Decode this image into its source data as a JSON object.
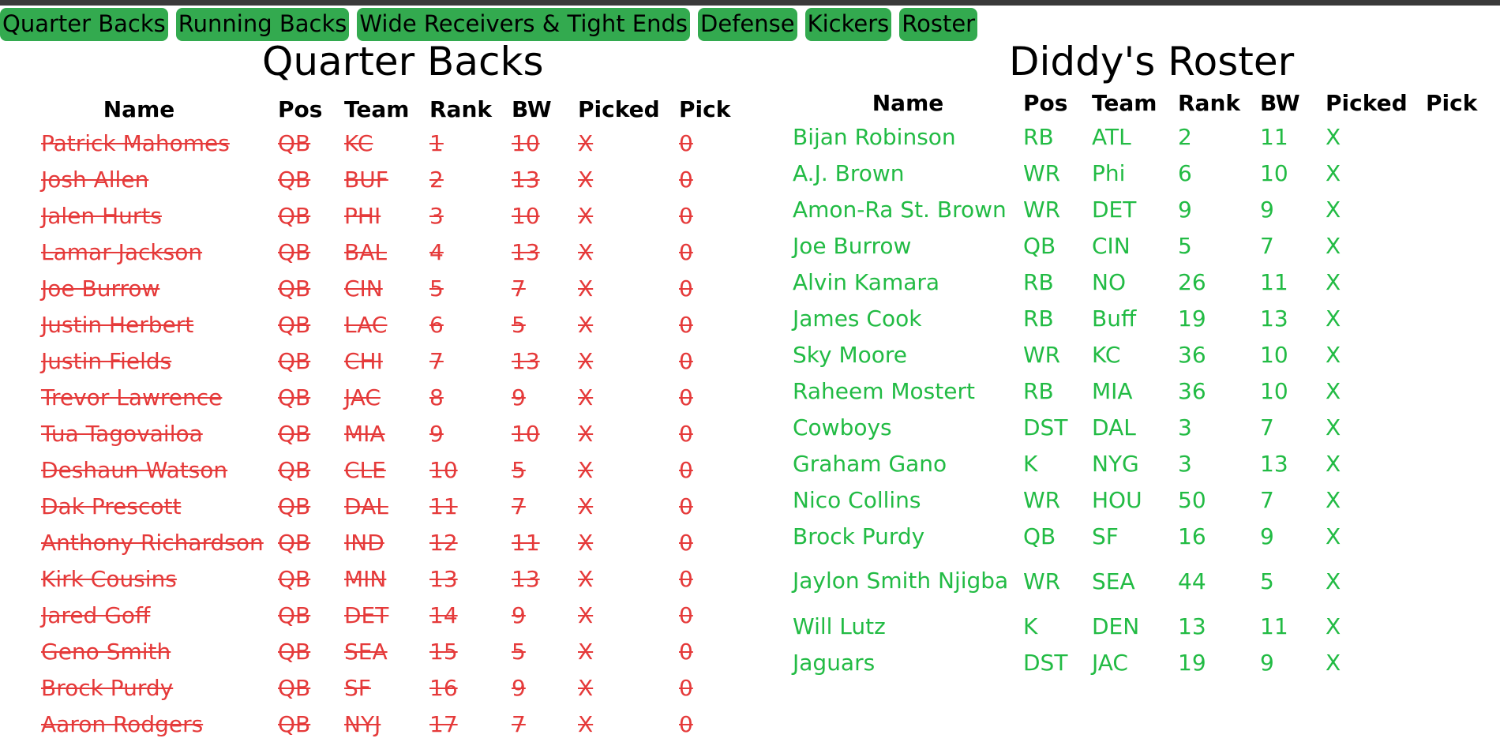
{
  "nav": {
    "tabs": [
      {
        "label": "Quarter Backs"
      },
      {
        "label": "Running Backs"
      },
      {
        "label": "Wide Receivers & Tight Ends"
      },
      {
        "label": "Defense"
      },
      {
        "label": "Kickers"
      },
      {
        "label": "Roster"
      }
    ]
  },
  "qb_section": {
    "title": "Quarter Backs",
    "headers": {
      "name": "Name",
      "pos": "Pos",
      "team": "Team",
      "rank": "Rank",
      "bw": "BW",
      "picked": "Picked",
      "pick": "Pick"
    },
    "rows": [
      {
        "name": "Patrick Mahomes",
        "pos": "QB",
        "team": "KC",
        "rank": "1",
        "bw": "10",
        "picked": "X",
        "pick": "0"
      },
      {
        "name": "Josh Allen",
        "pos": "QB",
        "team": "BUF",
        "rank": "2",
        "bw": "13",
        "picked": "X",
        "pick": "0"
      },
      {
        "name": "Jalen Hurts",
        "pos": "QB",
        "team": "PHI",
        "rank": "3",
        "bw": "10",
        "picked": "X",
        "pick": "0"
      },
      {
        "name": "Lamar Jackson",
        "pos": "QB",
        "team": "BAL",
        "rank": "4",
        "bw": "13",
        "picked": "X",
        "pick": "0"
      },
      {
        "name": "Joe Burrow",
        "pos": "QB",
        "team": "CIN",
        "rank": "5",
        "bw": "7",
        "picked": "X",
        "pick": "0"
      },
      {
        "name": "Justin Herbert",
        "pos": "QB",
        "team": "LAC",
        "rank": "6",
        "bw": "5",
        "picked": "X",
        "pick": "0"
      },
      {
        "name": "Justin Fields",
        "pos": "QB",
        "team": "CHI",
        "rank": "7",
        "bw": "13",
        "picked": "X",
        "pick": "0"
      },
      {
        "name": "Trevor Lawrence",
        "pos": "QB",
        "team": "JAC",
        "rank": "8",
        "bw": "9",
        "picked": "X",
        "pick": "0"
      },
      {
        "name": "Tua Tagovailoa",
        "pos": "QB",
        "team": "MIA",
        "rank": "9",
        "bw": "10",
        "picked": "X",
        "pick": "0"
      },
      {
        "name": "Deshaun Watson",
        "pos": "QB",
        "team": "CLE",
        "rank": "10",
        "bw": "5",
        "picked": "X",
        "pick": "0"
      },
      {
        "name": "Dak Prescott",
        "pos": "QB",
        "team": "DAL",
        "rank": "11",
        "bw": "7",
        "picked": "X",
        "pick": "0"
      },
      {
        "name": "Anthony Richardson",
        "pos": "QB",
        "team": "IND",
        "rank": "12",
        "bw": "11",
        "picked": "X",
        "pick": "0"
      },
      {
        "name": "Kirk Cousins",
        "pos": "QB",
        "team": "MIN",
        "rank": "13",
        "bw": "13",
        "picked": "X",
        "pick": "0"
      },
      {
        "name": "Jared Goff",
        "pos": "QB",
        "team": "DET",
        "rank": "14",
        "bw": "9",
        "picked": "X",
        "pick": "0"
      },
      {
        "name": "Geno Smith",
        "pos": "QB",
        "team": "SEA",
        "rank": "15",
        "bw": "5",
        "picked": "X",
        "pick": "0"
      },
      {
        "name": "Brock Purdy",
        "pos": "QB",
        "team": "SF",
        "rank": "16",
        "bw": "9",
        "picked": "X",
        "pick": "0"
      },
      {
        "name": "Aaron Rodgers",
        "pos": "QB",
        "team": "NYJ",
        "rank": "17",
        "bw": "7",
        "picked": "X",
        "pick": "0"
      }
    ]
  },
  "roster_section": {
    "title": "Diddy's Roster",
    "headers": {
      "name": "Name",
      "pos": "Pos",
      "team": "Team",
      "rank": "Rank",
      "bw": "BW",
      "picked": "Picked",
      "pick": "Pick"
    },
    "rows": [
      {
        "name": "Bijan Robinson",
        "pos": "RB",
        "team": "ATL",
        "rank": "2",
        "bw": "11",
        "picked": "X"
      },
      {
        "name": "A.J. Brown",
        "pos": "WR",
        "team": "Phi",
        "rank": "6",
        "bw": "10",
        "picked": "X"
      },
      {
        "name": "Amon-Ra St. Brown",
        "pos": "WR",
        "team": "DET",
        "rank": "9",
        "bw": "9",
        "picked": "X"
      },
      {
        "name": "Joe Burrow",
        "pos": "QB",
        "team": "CIN",
        "rank": "5",
        "bw": "7",
        "picked": "X"
      },
      {
        "name": "Alvin Kamara",
        "pos": "RB",
        "team": "NO",
        "rank": "26",
        "bw": "11",
        "picked": "X"
      },
      {
        "name": "James Cook",
        "pos": "RB",
        "team": "Buff",
        "rank": "19",
        "bw": "13",
        "picked": "X"
      },
      {
        "name": "Sky Moore",
        "pos": "WR",
        "team": "KC",
        "rank": "36",
        "bw": "10",
        "picked": "X"
      },
      {
        "name": "Raheem Mostert",
        "pos": "RB",
        "team": "MIA",
        "rank": "36",
        "bw": "10",
        "picked": "X"
      },
      {
        "name": "Cowboys",
        "pos": "DST",
        "team": "DAL",
        "rank": "3",
        "bw": "7",
        "picked": "X"
      },
      {
        "name": "Graham Gano",
        "pos": "K",
        "team": "NYG",
        "rank": "3",
        "bw": "13",
        "picked": "X"
      },
      {
        "name": "Nico Collins",
        "pos": "WR",
        "team": "HOU",
        "rank": "50",
        "bw": "7",
        "picked": "X"
      },
      {
        "name": "Brock Purdy",
        "pos": "QB",
        "team": "SF",
        "rank": "16",
        "bw": "9",
        "picked": "X"
      },
      {
        "name": "Jaylon Smith Njigba",
        "pos": "WR",
        "team": "SEA",
        "rank": "44",
        "bw": "5",
        "picked": "X"
      },
      {
        "name": "Will Lutz",
        "pos": "K",
        "team": "DEN",
        "rank": "13",
        "bw": "11",
        "picked": "X"
      },
      {
        "name": "Jaguars",
        "pos": "DST",
        "team": "JAC",
        "rank": "19",
        "bw": "9",
        "picked": "X"
      }
    ]
  },
  "colors": {
    "nav_bg": "#33aa4f",
    "picked_red": "#e53a3a",
    "roster_green": "#22bb44"
  }
}
